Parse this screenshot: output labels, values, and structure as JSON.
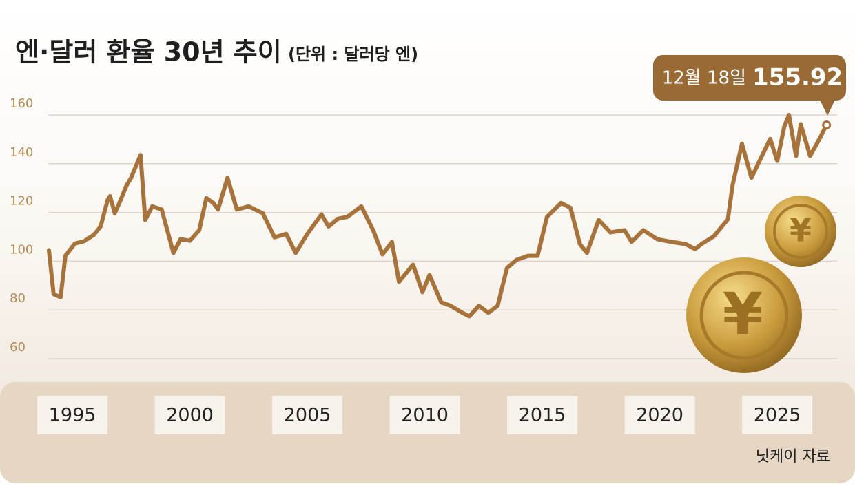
{
  "chart_data": {
    "type": "line",
    "title": "엔·달러 환율 30년 추이",
    "subtitle": "(단위 : 달러당 엔)",
    "source": "닛케이 자료",
    "annotation_date": "12월 18일",
    "color": "#a8733a",
    "grid": true,
    "xlim": [
      1994,
      2027.5
    ],
    "xticks": [
      1995,
      2000,
      2005,
      2010,
      2015,
      2020,
      2025
    ],
    "ylim": [
      60,
      160
    ],
    "yticks": [
      60,
      80,
      100,
      120,
      140,
      160
    ],
    "x": [
      1994.0,
      1994.2,
      1994.5,
      1994.7,
      1995.1,
      1995.5,
      1995.9,
      1996.2,
      1996.5,
      1996.6,
      1996.8,
      1997.0,
      1997.3,
      1997.5,
      1997.9,
      1998.1,
      1998.4,
      1998.8,
      1999.3,
      1999.6,
      2000.0,
      2000.4,
      2000.7,
      2001.0,
      2001.2,
      2001.6,
      2002.0,
      2002.5,
      2003.1,
      2003.6,
      2004.1,
      2004.5,
      2005.0,
      2005.6,
      2005.9,
      2006.3,
      2006.7,
      2007.3,
      2007.8,
      2008.2,
      2008.6,
      2008.9,
      2009.5,
      2009.9,
      2010.2,
      2010.7,
      2011.1,
      2011.6,
      2011.9,
      2012.3,
      2012.7,
      2013.1,
      2013.5,
      2013.9,
      2014.4,
      2014.8,
      2015.2,
      2015.8,
      2016.2,
      2016.6,
      2016.9,
      2017.4,
      2017.9,
      2018.5,
      2018.8,
      2019.3,
      2019.9,
      2020.5,
      2021.1,
      2021.5,
      2021.8,
      2022.3,
      2022.9,
      2023.1,
      2023.5,
      2023.9,
      2024.3,
      2024.7,
      2025.0,
      2025.3,
      2025.5,
      2025.8,
      2026.0,
      2026.4,
      2026.8,
      2027.1
    ],
    "values": [
      104.5,
      86.5,
      85.2,
      102.2,
      107.2,
      108.2,
      110.7,
      114.2,
      125.2,
      126.7,
      119.7,
      123.9,
      131,
      134.2,
      143.6,
      116.9,
      122.5,
      121.2,
      103.4,
      109,
      108.4,
      112.7,
      125.9,
      123.9,
      121.2,
      134.2,
      121.2,
      122.5,
      119.7,
      109.8,
      111.2,
      103.4,
      111.2,
      119.2,
      114.2,
      117.4,
      118.2,
      122.5,
      112.7,
      102.8,
      107.9,
      91.5,
      98.6,
      87.3,
      94.3,
      83.1,
      81.7,
      78.8,
      77.4,
      81.7,
      78.8,
      81.7,
      97.2,
      100.5,
      102.2,
      102.2,
      118.2,
      123.9,
      121.9,
      107,
      103.4,
      116.9,
      111.8,
      112.7,
      107.9,
      112.7,
      109,
      107.9,
      107,
      105,
      107.2,
      110.2,
      117.2,
      131.2,
      148.2,
      134.2,
      142.2,
      150.2,
      141.2,
      155.2,
      160,
      143.2,
      156.2,
      143.2,
      150.2,
      155.92
    ]
  }
}
